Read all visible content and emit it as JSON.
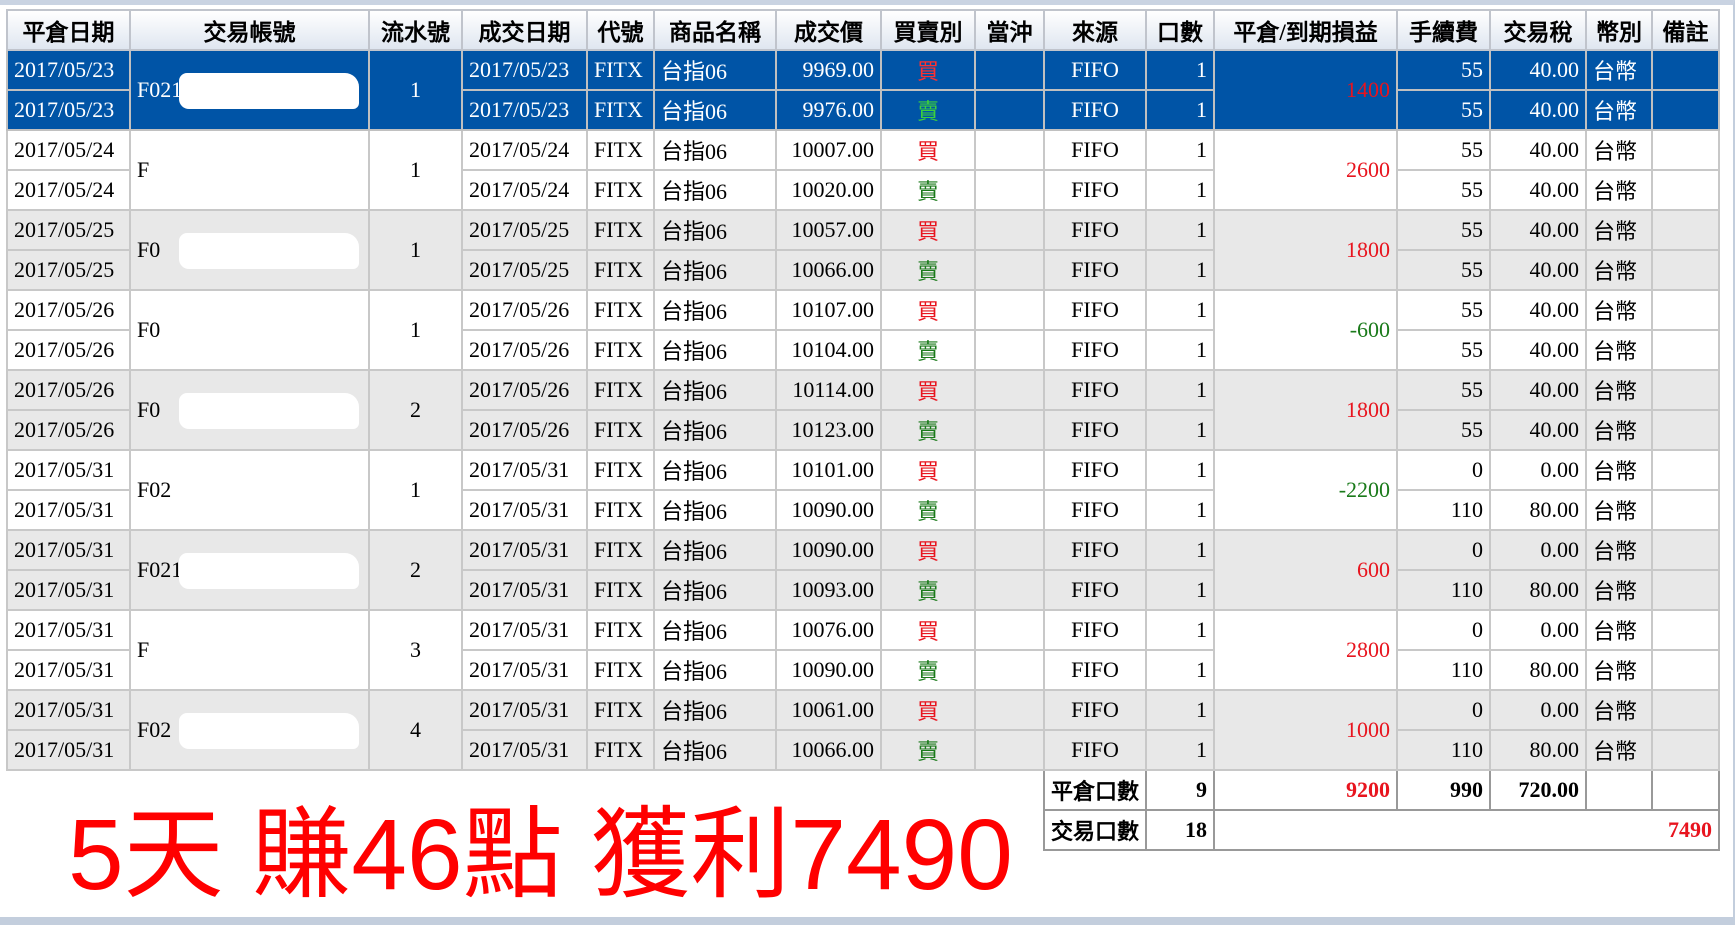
{
  "columns": [
    "平倉日期",
    "交易帳號",
    "流水號",
    "成交日期",
    "代號",
    "商品名稱",
    "成交價",
    "買賣別",
    "當沖",
    "來源",
    "口數",
    "平倉/到期損益",
    "手續費",
    "交易稅",
    "幣別",
    "備註"
  ],
  "colors": {
    "selected": "#0054a6",
    "buy": "#e8141e",
    "sell": "#1a7a1a",
    "profit": "#e8141e",
    "loss": "#1a7a1a",
    "banner": "#ff0000"
  },
  "groups": [
    {
      "close_date": "2017/05/23",
      "account": "F021",
      "serial": "1",
      "pnl": "1400",
      "selected": true,
      "legs": [
        {
          "trade_date": "2017/05/23",
          "code": "FITX",
          "product": "台指06",
          "price": "9969.00",
          "side": "買",
          "source": "FIFO",
          "qty": "1",
          "fee": "55",
          "tax": "40.00",
          "currency": "台幣"
        },
        {
          "trade_date": "2017/05/23",
          "code": "FITX",
          "product": "台指06",
          "price": "9976.00",
          "side": "賣",
          "source": "FIFO",
          "qty": "1",
          "fee": "55",
          "tax": "40.00",
          "currency": "台幣"
        }
      ]
    },
    {
      "close_date": "2017/05/24",
      "account": "F",
      "serial": "1",
      "pnl": "2600",
      "legs": [
        {
          "trade_date": "2017/05/24",
          "code": "FITX",
          "product": "台指06",
          "price": "10007.00",
          "side": "買",
          "source": "FIFO",
          "qty": "1",
          "fee": "55",
          "tax": "40.00",
          "currency": "台幣"
        },
        {
          "trade_date": "2017/05/24",
          "code": "FITX",
          "product": "台指06",
          "price": "10020.00",
          "side": "賣",
          "source": "FIFO",
          "qty": "1",
          "fee": "55",
          "tax": "40.00",
          "currency": "台幣"
        }
      ]
    },
    {
      "close_date": "2017/05/25",
      "account": "F0",
      "serial": "1",
      "pnl": "1800",
      "legs": [
        {
          "trade_date": "2017/05/25",
          "code": "FITX",
          "product": "台指06",
          "price": "10057.00",
          "side": "買",
          "source": "FIFO",
          "qty": "1",
          "fee": "55",
          "tax": "40.00",
          "currency": "台幣"
        },
        {
          "trade_date": "2017/05/25",
          "code": "FITX",
          "product": "台指06",
          "price": "10066.00",
          "side": "賣",
          "source": "FIFO",
          "qty": "1",
          "fee": "55",
          "tax": "40.00",
          "currency": "台幣"
        }
      ]
    },
    {
      "close_date": "2017/05/26",
      "account": "F0",
      "serial": "1",
      "pnl": "-600",
      "legs": [
        {
          "trade_date": "2017/05/26",
          "code": "FITX",
          "product": "台指06",
          "price": "10107.00",
          "side": "買",
          "source": "FIFO",
          "qty": "1",
          "fee": "55",
          "tax": "40.00",
          "currency": "台幣"
        },
        {
          "trade_date": "2017/05/26",
          "code": "FITX",
          "product": "台指06",
          "price": "10104.00",
          "side": "賣",
          "source": "FIFO",
          "qty": "1",
          "fee": "55",
          "tax": "40.00",
          "currency": "台幣"
        }
      ]
    },
    {
      "close_date": "2017/05/26",
      "account": "F0",
      "serial": "2",
      "pnl": "1800",
      "legs": [
        {
          "trade_date": "2017/05/26",
          "code": "FITX",
          "product": "台指06",
          "price": "10114.00",
          "side": "買",
          "source": "FIFO",
          "qty": "1",
          "fee": "55",
          "tax": "40.00",
          "currency": "台幣"
        },
        {
          "trade_date": "2017/05/26",
          "code": "FITX",
          "product": "台指06",
          "price": "10123.00",
          "side": "賣",
          "source": "FIFO",
          "qty": "1",
          "fee": "55",
          "tax": "40.00",
          "currency": "台幣"
        }
      ]
    },
    {
      "close_date": "2017/05/31",
      "account": "F02",
      "serial": "1",
      "pnl": "-2200",
      "legs": [
        {
          "trade_date": "2017/05/31",
          "code": "FITX",
          "product": "台指06",
          "price": "10101.00",
          "side": "買",
          "source": "FIFO",
          "qty": "1",
          "fee": "0",
          "tax": "0.00",
          "currency": "台幣"
        },
        {
          "trade_date": "2017/05/31",
          "code": "FITX",
          "product": "台指06",
          "price": "10090.00",
          "side": "賣",
          "source": "FIFO",
          "qty": "1",
          "fee": "110",
          "tax": "80.00",
          "currency": "台幣"
        }
      ]
    },
    {
      "close_date": "2017/05/31",
      "account": "F021",
      "serial": "2",
      "pnl": "600",
      "legs": [
        {
          "trade_date": "2017/05/31",
          "code": "FITX",
          "product": "台指06",
          "price": "10090.00",
          "side": "買",
          "source": "FIFO",
          "qty": "1",
          "fee": "0",
          "tax": "0.00",
          "currency": "台幣"
        },
        {
          "trade_date": "2017/05/31",
          "code": "FITX",
          "product": "台指06",
          "price": "10093.00",
          "side": "賣",
          "source": "FIFO",
          "qty": "1",
          "fee": "110",
          "tax": "80.00",
          "currency": "台幣"
        }
      ]
    },
    {
      "close_date": "2017/05/31",
      "account": "F",
      "serial": "3",
      "pnl": "2800",
      "legs": [
        {
          "trade_date": "2017/05/31",
          "code": "FITX",
          "product": "台指06",
          "price": "10076.00",
          "side": "買",
          "source": "FIFO",
          "qty": "1",
          "fee": "0",
          "tax": "0.00",
          "currency": "台幣"
        },
        {
          "trade_date": "2017/05/31",
          "code": "FITX",
          "product": "台指06",
          "price": "10090.00",
          "side": "賣",
          "source": "FIFO",
          "qty": "1",
          "fee": "110",
          "tax": "80.00",
          "currency": "台幣"
        }
      ]
    },
    {
      "close_date": "2017/05/31",
      "account": "F02",
      "serial": "4",
      "pnl": "1000",
      "legs": [
        {
          "trade_date": "2017/05/31",
          "code": "FITX",
          "product": "台指06",
          "price": "10061.00",
          "side": "買",
          "source": "FIFO",
          "qty": "1",
          "fee": "0",
          "tax": "0.00",
          "currency": "台幣"
        },
        {
          "trade_date": "2017/05/31",
          "code": "FITX",
          "product": "台指06",
          "price": "10066.00",
          "side": "賣",
          "source": "FIFO",
          "qty": "1",
          "fee": "110",
          "tax": "80.00",
          "currency": "台幣"
        }
      ]
    }
  ],
  "summary": {
    "close_label": "平倉口數",
    "close_qty": "9",
    "close_pnl": "9200",
    "total_fee": "990",
    "total_tax": "720.00",
    "trade_label": "交易口數",
    "trade_qty": "18",
    "net_pnl": "7490"
  },
  "banner": "5天 賺46點 獲利7490"
}
